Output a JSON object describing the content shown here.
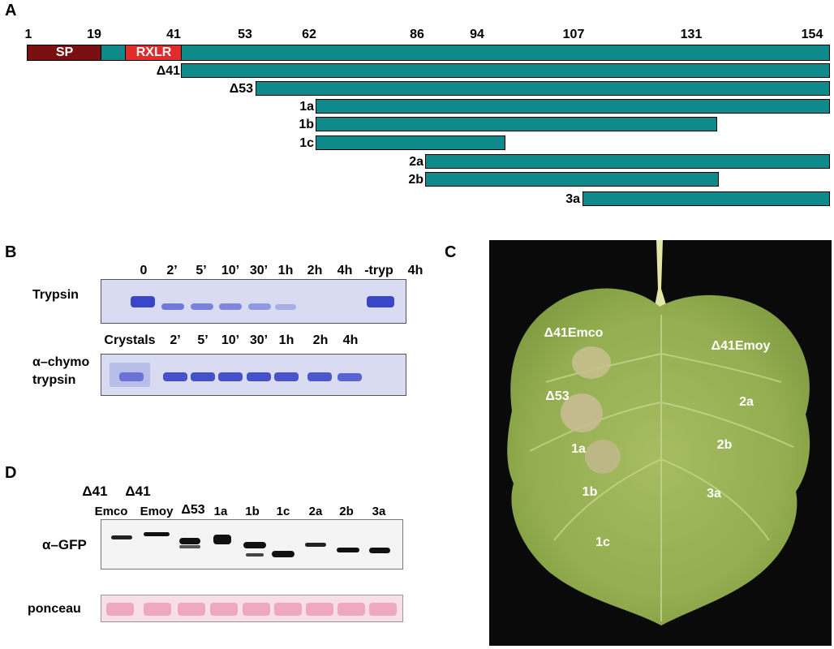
{
  "panelA": {
    "letter": "A",
    "ticks": [
      "1",
      "19",
      "41",
      "53",
      "62",
      "86",
      "94",
      "107",
      "131",
      "154"
    ],
    "segments": {
      "sp": "SP",
      "rxlr": "RXLR"
    },
    "constructs": [
      "Δ41",
      "Δ53",
      "1a",
      "1b",
      "1c",
      "2a",
      "2b",
      "3a"
    ],
    "colors": {
      "sp": "#7a0f12",
      "rxlr": "#e22b2b",
      "domain": "#0f8a8a"
    }
  },
  "panelB": {
    "letter": "B",
    "trypsin_label": "Trypsin",
    "trypsin_lanes": [
      "0",
      "2’",
      "5’",
      "10’",
      "30’",
      "1h",
      "2h",
      "4h",
      "-tryp",
      "4h"
    ],
    "chymo_label_line1": "α–chymo",
    "chymo_label_line2": "trypsin",
    "chymo_lanes": [
      "Crystals",
      "2’",
      "5’",
      "10’",
      "30’",
      "1h",
      "2h",
      "4h"
    ]
  },
  "panelC": {
    "letter": "C",
    "labels": [
      "Δ41Emco",
      "Δ41Emoy",
      "Δ53",
      "2a",
      "1a",
      "2b",
      "1b",
      "3a",
      "1c"
    ]
  },
  "panelD": {
    "letter": "D",
    "lanes": [
      {
        "top": "Δ41",
        "bottom": "Emco"
      },
      {
        "top": "Δ41",
        "bottom": "Emoy"
      },
      {
        "top": "",
        "bottom": "Δ53"
      },
      {
        "top": "",
        "bottom": "1a"
      },
      {
        "top": "",
        "bottom": "1b"
      },
      {
        "top": "",
        "bottom": "1c"
      },
      {
        "top": "",
        "bottom": "2a"
      },
      {
        "top": "",
        "bottom": "2b"
      },
      {
        "top": "",
        "bottom": "3a"
      }
    ],
    "blot_label": "α–GFP",
    "ponceau_label": "ponceau"
  }
}
